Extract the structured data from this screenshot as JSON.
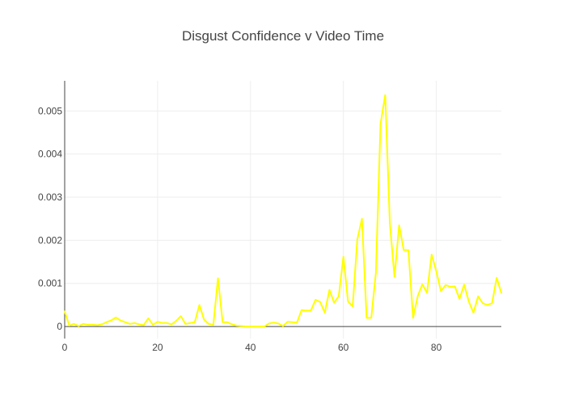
{
  "chart_data": {
    "type": "line",
    "title": "Disgust Confidence v Video Time",
    "xlabel": "",
    "ylabel": "",
    "xlim": [
      0,
      94
    ],
    "ylim": [
      -0.00028,
      0.0057
    ],
    "x_ticks": [
      0,
      20,
      40,
      60,
      80
    ],
    "y_ticks": [
      0,
      0.001,
      0.002,
      0.003,
      0.004,
      0.005
    ],
    "x_tick_labels": [
      "0",
      "20",
      "40",
      "60",
      "80"
    ],
    "y_tick_labels": [
      "0",
      "0.001",
      "0.002",
      "0.003",
      "0.004",
      "0.005"
    ],
    "grid": true,
    "legend": "none",
    "series": [
      {
        "color": "#ffff00",
        "x": [
          0,
          1,
          2,
          3,
          4,
          5,
          6,
          7,
          8,
          9,
          10,
          11,
          12,
          13,
          14,
          15,
          16,
          17,
          18,
          19,
          20,
          21,
          22,
          23,
          24,
          25,
          26,
          27,
          28,
          29,
          30,
          31,
          32,
          33,
          34,
          35,
          36,
          37,
          38,
          39,
          40,
          41,
          42,
          43,
          44,
          45,
          46,
          47,
          48,
          49,
          50,
          51,
          52,
          53,
          54,
          55,
          56,
          57,
          58,
          59,
          60,
          61,
          62,
          63,
          64,
          65,
          66,
          67,
          68,
          69,
          70,
          71,
          72,
          73,
          74,
          75,
          76,
          77,
          78,
          79,
          80,
          81,
          82,
          83,
          84,
          85,
          86,
          87,
          88,
          89,
          90,
          91,
          92,
          93,
          94
        ],
        "y": [
          0.00035,
          2e-05,
          6e-05,
          1e-05,
          6e-05,
          4e-05,
          4e-05,
          3e-05,
          5e-05,
          0.0001,
          0.00014,
          0.00021,
          0.00014,
          0.0001,
          6e-05,
          8e-05,
          5e-05,
          3e-05,
          0.00019,
          4e-05,
          0.00011,
          8e-05,
          8e-05,
          5e-05,
          0.00013,
          0.00024,
          6e-05,
          8e-05,
          0.0001,
          0.0005,
          0.00016,
          6e-05,
          4e-05,
          0.00112,
          0.0001,
          0.0001,
          5e-05,
          2e-05,
          1e-05,
          0.0,
          0.0,
          0.0,
          0.0,
          0.0,
          7e-05,
          9e-05,
          7e-05,
          1e-05,
          0.00011,
          0.0001,
          9e-05,
          0.00038,
          0.00037,
          0.00037,
          0.00062,
          0.00057,
          0.00032,
          0.00085,
          0.00055,
          0.0007,
          0.00162,
          0.00058,
          0.00047,
          0.00202,
          0.0025,
          0.0002,
          0.0002,
          0.00125,
          0.0047,
          0.00537,
          0.0024,
          0.00115,
          0.00235,
          0.00177,
          0.00177,
          0.0002,
          0.0007,
          0.00098,
          0.00078,
          0.00167,
          0.00128,
          0.00082,
          0.00096,
          0.00092,
          0.00093,
          0.00064,
          0.00097,
          0.00058,
          0.00032,
          0.0007,
          0.00054,
          0.0005,
          0.00054,
          0.00113,
          0.00078
        ]
      }
    ]
  }
}
